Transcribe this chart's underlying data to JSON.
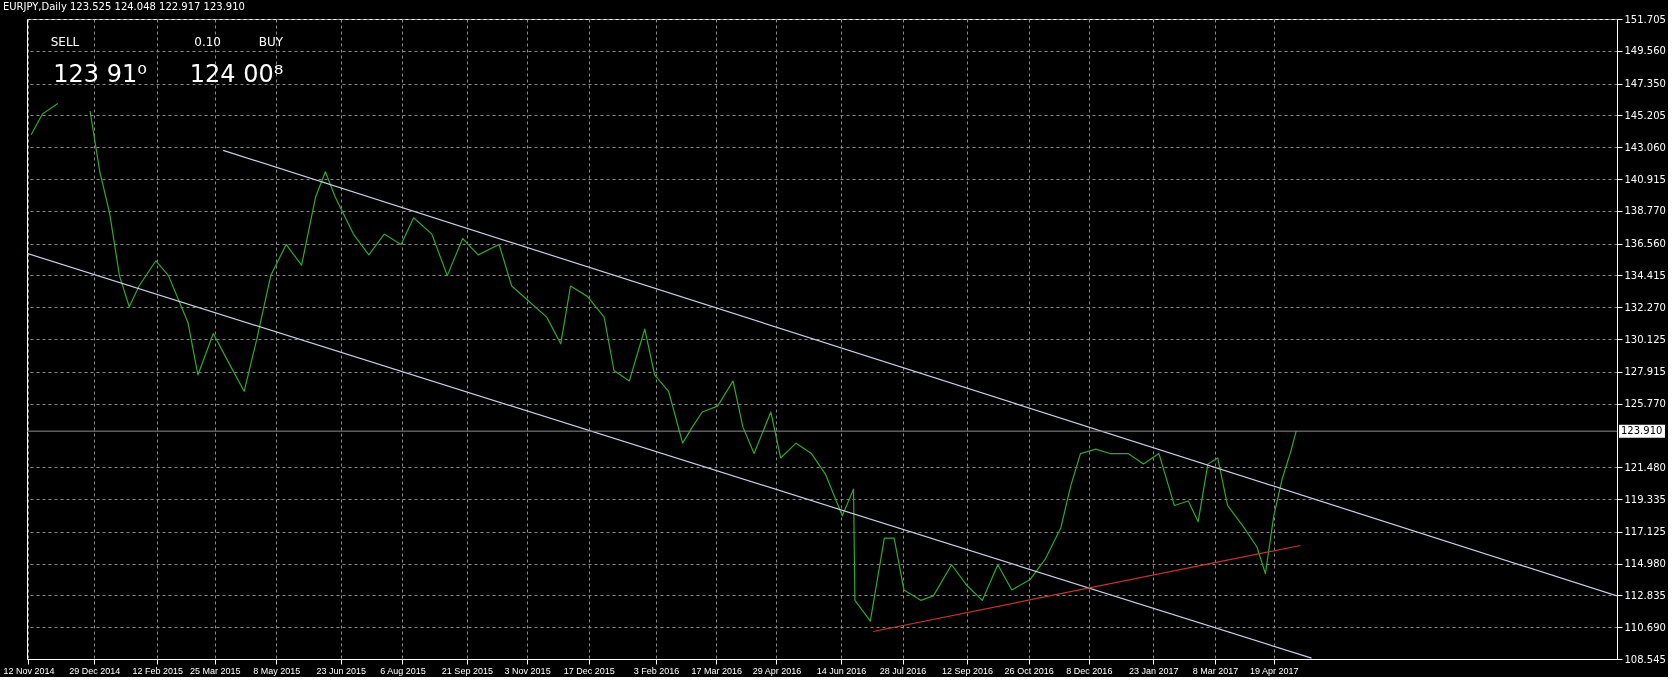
{
  "chart_data": {
    "type": "line",
    "title": "EURJPY,Daily 123.525 124.048 122.917 123.910",
    "annotations": [
      "SELL",
      "0.10",
      "BUY",
      "123 91⁰",
      "124 00⁸"
    ],
    "xlim": [
      "2014-11-11",
      "2017-12-20"
    ],
    "ylim": [
      108.545,
      151.705
    ],
    "xticks": [
      {
        "value": "2014-11-12",
        "label": "12 Nov 2014"
      },
      {
        "value": "2014-12-29",
        "label": "29 Dec 2014"
      },
      {
        "value": "2015-02-12",
        "label": "12 Feb 2015"
      },
      {
        "value": "2015-03-25",
        "label": "25 Mar 2015"
      },
      {
        "value": "2015-05-08",
        "label": "8 May 2015"
      },
      {
        "value": "2015-06-23",
        "label": "23 Jun 2015"
      },
      {
        "value": "2015-08-06",
        "label": "6 Aug 2015"
      },
      {
        "value": "2015-09-21",
        "label": "21 Sep 2015"
      },
      {
        "value": "2015-11-03",
        "label": "3 Nov 2015"
      },
      {
        "value": "2015-12-17",
        "label": "17 Dec 2015"
      },
      {
        "value": "2016-02-03",
        "label": "3 Feb 2016"
      },
      {
        "value": "2016-03-17",
        "label": "17 Mar 2016"
      },
      {
        "value": "2016-04-29",
        "label": "29 Apr 2016"
      },
      {
        "value": "2016-06-14",
        "label": "14 Jun 2016"
      },
      {
        "value": "2016-07-28",
        "label": "28 Jul 2016"
      },
      {
        "value": "2016-09-12",
        "label": "12 Sep 2016"
      },
      {
        "value": "2016-10-26",
        "label": "26 Oct 2016"
      },
      {
        "value": "2016-12-08",
        "label": "8 Dec 2016"
      },
      {
        "value": "2017-01-23",
        "label": "23 Jan 2017"
      },
      {
        "value": "2017-03-08",
        "label": "8 Mar 2017"
      },
      {
        "value": "2017-04-19",
        "label": "19 Apr 2017"
      }
    ],
    "yticks": [
      108.545,
      {
        "value": 110.69,
        "label": "110.690"
      },
      112.835,
      {
        "value": 114.98,
        "label": "114.980"
      },
      117.125,
      119.335,
      {
        "value": 121.48,
        "label": "121.480"
      },
      {
        "value": 125.77,
        "label": "125.770"
      },
      127.915,
      130.125,
      {
        "value": 132.27,
        "label": "132.270"
      },
      134.415,
      {
        "value": 136.56,
        "label": "136.560"
      },
      {
        "value": 138.77,
        "label": "138.770"
      },
      140.915,
      {
        "value": 143.06,
        "label": "143.060"
      },
      145.205,
      {
        "value": 147.35,
        "label": "147.350"
      },
      {
        "value": 149.56,
        "label": "149.560"
      },
      151.705
    ],
    "grid": true,
    "line_style": "solid",
    "marker": "none",
    "ref_lines": [
      {
        "axis": "y",
        "value": 123.91,
        "label": "123.910",
        "color": "#8c8c8c"
      }
    ],
    "series": [
      {
        "color": "#2ea82e",
        "x": [
          "2014-11-14",
          "2014-11-22",
          "2014-12-03",
          "2014-12-17",
          "2014-12-26",
          "2015-01-02",
          "2015-01-09",
          "2015-01-16",
          "2015-01-23",
          "2015-01-30",
          "2015-02-11",
          "2015-02-20",
          "2015-03-06",
          "2015-03-13",
          "2015-03-24",
          "2015-04-03",
          "2015-04-15",
          "2015-04-24",
          "2015-05-04",
          "2015-05-15",
          "2015-05-26",
          "2015-06-05",
          "2015-06-12",
          "2015-06-19",
          "2015-07-02",
          "2015-07-13",
          "2015-07-24",
          "2015-08-05",
          "2015-08-14",
          "2015-08-27",
          "2015-09-07",
          "2015-09-18",
          "2015-09-29",
          "2015-10-14",
          "2015-10-23",
          "2015-11-05",
          "2015-11-17",
          "2015-11-27",
          "2015-12-04",
          "2015-12-16",
          "2015-12-28",
          "2016-01-04",
          "2016-01-15",
          "2016-01-26",
          "2016-02-02",
          "2016-02-12",
          "2016-02-22",
          "2016-02-29",
          "2016-03-07",
          "2016-03-18",
          "2016-03-29",
          "2016-04-05",
          "2016-04-13",
          "2016-04-25",
          "2016-05-02",
          "2016-05-13",
          "2016-05-24",
          "2016-06-03",
          "2016-06-15",
          "2016-06-23",
          "2016-06-24",
          "2016-07-05",
          "2016-07-15",
          "2016-07-22",
          "2016-07-29",
          "2016-08-10",
          "2016-08-19",
          "2016-09-01",
          "2016-09-12",
          "2016-09-23",
          "2016-10-04",
          "2016-10-14",
          "2016-10-27",
          "2016-11-07",
          "2016-11-18",
          "2016-11-25",
          "2016-12-02",
          "2016-12-13",
          "2016-12-23",
          "2017-01-05",
          "2017-01-16",
          "2017-01-27",
          "2017-02-07",
          "2017-02-17",
          "2017-02-24",
          "2017-03-03",
          "2017-03-10",
          "2017-03-17",
          "2017-03-28",
          "2017-04-07",
          "2017-04-13",
          "2017-04-19",
          "2017-04-25",
          "2017-05-01",
          "2017-05-05"
        ],
        "values": [
          143.9,
          145.3,
          146.0,
          null,
          145.5,
          141.4,
          138.6,
          134.4,
          132.3,
          133.7,
          135.4,
          134.4,
          131.2,
          127.7,
          130.5,
          128.7,
          126.6,
          130.1,
          134.4,
          136.5,
          135.1,
          139.7,
          141.4,
          139.7,
          137.2,
          135.8,
          137.2,
          136.5,
          138.3,
          137.2,
          134.4,
          136.9,
          135.8,
          136.5,
          133.7,
          132.6,
          131.6,
          129.8,
          133.7,
          133.0,
          131.6,
          128.0,
          127.3,
          130.8,
          127.7,
          126.6,
          123.1,
          124.2,
          125.2,
          125.6,
          127.3,
          124.2,
          122.4,
          125.2,
          122.1,
          123.1,
          122.4,
          121.0,
          118.2,
          120.0,
          112.5,
          111.1,
          116.7,
          116.7,
          113.2,
          112.5,
          112.8,
          114.9,
          113.5,
          112.5,
          114.9,
          113.2,
          113.9,
          115.3,
          117.4,
          120.2,
          122.4,
          122.7,
          122.4,
          122.4,
          121.7,
          122.4,
          118.9,
          119.2,
          117.8,
          121.7,
          122.1,
          118.9,
          117.5,
          116.1,
          114.3,
          118.2,
          120.7,
          122.5,
          123.91
        ]
      },
      {
        "color": "#c8cfe6",
        "x": [
          "2015-03-31",
          "2017-12-20"
        ],
        "values": [
          142.85,
          112.8
        ]
      },
      {
        "color": "#c8cfe6",
        "x": [
          "2014-11-11",
          "2017-05-16"
        ],
        "values": [
          135.9,
          108.6
        ]
      },
      {
        "color": "#c83232",
        "x": [
          "2016-07-07",
          "2017-05-08"
        ],
        "values": [
          110.4,
          116.2
        ]
      }
    ]
  }
}
